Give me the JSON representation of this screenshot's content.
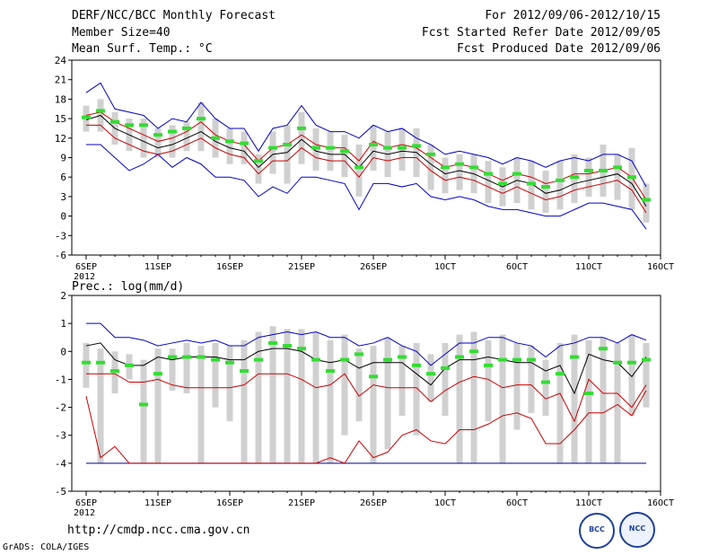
{
  "header": {
    "title": "DERF/NCC/BCC Monthly Forecast",
    "member_size": "Member Size=40",
    "variable": "Mean Surf. Temp.: °C",
    "period": "For 2012/09/06-2012/10/15",
    "started": "Fcst Started Refer Date 2012/09/05",
    "produced": "Fcst Produced Date 2012/09/06"
  },
  "footer": {
    "url": "http://cmdp.ncc.cma.gov.cn",
    "credit": "GrADS: COLA/IGES",
    "logo_bcc": "BCC",
    "logo_ncc": "NCC"
  },
  "chart_data": [
    {
      "type": "line",
      "title": "Mean Surf. Temp.: °C",
      "ylim": [
        -6,
        24
      ],
      "yticks": [
        "24",
        "21",
        "18",
        "15",
        "12",
        "9",
        "6",
        "3",
        "0",
        "-3",
        "-6"
      ],
      "xticks": [
        "6SEP",
        "11SEP",
        "16SEP",
        "21SEP",
        "26SEP",
        "1OCT",
        "6OCT",
        "11OCT",
        "16OCT"
      ],
      "xyear": "2012",
      "days": 40,
      "series": [
        {
          "name": "upper",
          "color": "#0000cc",
          "values": [
            19,
            20.5,
            16.5,
            16,
            15.5,
            13.5,
            15,
            14.5,
            17.5,
            15,
            13.5,
            13.5,
            10,
            13.5,
            14,
            17,
            14,
            13,
            13,
            12,
            14,
            13,
            13.5,
            12,
            11,
            9.5,
            10,
            9.5,
            9,
            8,
            9,
            8.5,
            7.5,
            8.5,
            9,
            8.5,
            9.5,
            9.5,
            8.5,
            4.5
          ]
        },
        {
          "name": "red_upper",
          "color": "#cc0000",
          "values": [
            15.5,
            16,
            14.5,
            13.5,
            12.5,
            11.5,
            12,
            13,
            14.5,
            12.5,
            11.5,
            11,
            8.5,
            10.5,
            11,
            12.5,
            11,
            10.5,
            10.5,
            8.5,
            11.5,
            10.5,
            11,
            10.5,
            9,
            7.5,
            8,
            7.5,
            6.5,
            5.5,
            6.5,
            6,
            5,
            5.5,
            6.5,
            6.5,
            7,
            7.5,
            6,
            2.5
          ]
        },
        {
          "name": "mean",
          "color": "#000000",
          "values": [
            14.8,
            15.5,
            13.5,
            12.5,
            11.5,
            10.5,
            11,
            12,
            13,
            11.5,
            10.5,
            10,
            7.5,
            9.5,
            9.8,
            11.8,
            10,
            9.5,
            9.5,
            7.5,
            10,
            9.5,
            10,
            9.8,
            8,
            6.5,
            7,
            6.5,
            5.5,
            4.5,
            5.5,
            5,
            3.5,
            4,
            5,
            5.5,
            6,
            6.5,
            5,
            1.5
          ]
        },
        {
          "name": "red_lower",
          "color": "#cc0000",
          "values": [
            14,
            14,
            12,
            11,
            10,
            9.5,
            10,
            11,
            12,
            10.5,
            9.5,
            9,
            6.5,
            8.5,
            8.5,
            10.5,
            9,
            8.5,
            8.5,
            6,
            9,
            8.5,
            9,
            9,
            7,
            5.5,
            6,
            5.5,
            4.5,
            3.5,
            4.5,
            3.5,
            2.5,
            3,
            4,
            4.5,
            5,
            5.5,
            4,
            0.5
          ]
        },
        {
          "name": "lower",
          "color": "#0000cc",
          "values": [
            11,
            11,
            9,
            7,
            8,
            9.5,
            7.5,
            9,
            8,
            6,
            6,
            5.5,
            3,
            4.5,
            3.5,
            6,
            6,
            5.5,
            5,
            1,
            5,
            5,
            4.5,
            5,
            3,
            2.5,
            3,
            2.5,
            1.5,
            1,
            1,
            0.5,
            0,
            0,
            1,
            2,
            2,
            1.5,
            1,
            -2
          ]
        },
        {
          "name": "observed",
          "color": "#33dd33",
          "values": [
            15.2,
            16.2,
            14.5,
            14,
            14,
            12.5,
            13,
            13.5,
            15,
            12,
            11.5,
            11.2,
            8.5,
            10.5,
            11,
            13.5,
            10.5,
            10.5,
            10,
            7.5,
            11,
            10.5,
            10.5,
            10.8,
            9.5,
            7.5,
            8,
            7.5,
            6.5,
            5,
            6.5,
            5,
            4.5,
            5.5,
            6,
            7,
            7,
            7.5,
            6,
            2.5
          ]
        },
        {
          "name": "spread_max",
          "color": "#cccccc",
          "values": [
            17,
            18,
            16,
            15,
            15,
            13.5,
            14,
            14.5,
            17.5,
            15,
            13.5,
            13,
            9.5,
            13,
            14,
            16,
            13.5,
            13,
            12.5,
            11,
            14,
            13,
            13.5,
            13.5,
            11,
            9,
            9.5,
            9.5,
            8.5,
            7.5,
            9,
            8.5,
            7,
            8.5,
            9.5,
            9,
            11,
            9.5,
            10.5,
            5
          ]
        },
        {
          "name": "spread_min",
          "color": "#cccccc",
          "values": [
            13,
            13,
            11,
            10,
            9,
            9,
            9,
            10,
            10,
            9,
            8,
            8,
            5,
            6.5,
            5,
            8,
            7,
            7,
            6,
            3,
            7,
            6,
            7,
            6,
            4,
            3.5,
            4,
            3.5,
            2,
            1.5,
            2,
            1,
            0.5,
            1,
            2,
            3,
            3,
            2.5,
            1,
            -1
          ]
        }
      ]
    },
    {
      "type": "line",
      "title": "Prec.: log(mm/d)",
      "ylim": [
        -5,
        2
      ],
      "yticks": [
        "2",
        "1",
        "0",
        "-1",
        "-2",
        "-3",
        "-4",
        "-5"
      ],
      "xticks": [
        "6SEP",
        "11SEP",
        "16SEP",
        "21SEP",
        "26SEP",
        "1OCT",
        "6OCT",
        "11OCT",
        "16OCT"
      ],
      "xyear": "2012",
      "days": 40,
      "series": [
        {
          "name": "upper",
          "color": "#0000cc",
          "values": [
            1,
            1,
            0.5,
            0.5,
            0.4,
            0.2,
            0.3,
            0.4,
            0.3,
            0.4,
            0.2,
            0.2,
            0.5,
            0.6,
            0.7,
            0.6,
            0.7,
            0.5,
            0.5,
            0.2,
            0.3,
            0.5,
            0.2,
            0,
            -0.5,
            -0.1,
            0.3,
            0.3,
            0.5,
            0.5,
            0.3,
            0.2,
            -0.2,
            0.2,
            0.3,
            0.5,
            0.5,
            0.3,
            0.6,
            0.4
          ]
        },
        {
          "name": "mean",
          "color": "#000000",
          "values": [
            0.2,
            0.3,
            -0.3,
            -0.5,
            -0.5,
            -0.2,
            -0.3,
            -0.2,
            -0.2,
            -0.2,
            -0.3,
            -0.3,
            0,
            0.1,
            0.1,
            0,
            -0.3,
            -0.4,
            -0.3,
            -0.6,
            -0.4,
            -0.4,
            -0.4,
            -0.8,
            -1.2,
            -0.6,
            -0.3,
            -0.3,
            -0.2,
            -0.3,
            -0.4,
            -0.4,
            -0.7,
            -0.5,
            -1.5,
            -0.1,
            -0.3,
            -0.4,
            -0.9,
            -0.2
          ]
        },
        {
          "name": "red_upper",
          "color": "#cc0000",
          "values": [
            -0.8,
            -0.8,
            -0.8,
            -1.1,
            -1.1,
            -1,
            -1.2,
            -1.3,
            -1.3,
            -1.3,
            -1.3,
            -1.2,
            -0.8,
            -0.8,
            -0.8,
            -1,
            -1.3,
            -1.2,
            -0.8,
            -1.6,
            -1.2,
            -1.3,
            -1.3,
            -1.3,
            -1.8,
            -1.4,
            -1.1,
            -0.9,
            -1,
            -1.3,
            -1.2,
            -1.2,
            -1.7,
            -1.5,
            -2.5,
            -1,
            -1.5,
            -1.5,
            -2,
            -1.2
          ]
        },
        {
          "name": "red_lower",
          "color": "#cc0000",
          "values": [
            -1.6,
            -3.8,
            -3.4,
            -4,
            -4,
            -4,
            -4,
            -4,
            -4,
            -4,
            -4,
            -4,
            -4,
            -4,
            -4,
            -4,
            -4,
            -3.8,
            -4,
            -3.2,
            -3.8,
            -3.6,
            -3,
            -2.8,
            -3.2,
            -3.3,
            -2.8,
            -2.8,
            -2.6,
            -2.3,
            -2.2,
            -2.4,
            -3.3,
            -3.3,
            -2.8,
            -2.2,
            -2.2,
            -1.9,
            -2.3,
            -1.4
          ]
        },
        {
          "name": "observed",
          "color": "#33dd33",
          "values": [
            -0.4,
            -0.4,
            -0.7,
            -0.5,
            -1.9,
            -0.8,
            -0.2,
            -0.2,
            -0.2,
            -0.3,
            -0.4,
            -0.7,
            -0.3,
            0.3,
            0.2,
            0.1,
            -0.3,
            -0.7,
            -0.3,
            -0.1,
            -0.9,
            -0.3,
            -0.2,
            -0.5,
            -0.8,
            -0.6,
            -0.2,
            0,
            -0.5,
            -0.3,
            -0.3,
            -0.3,
            -1.1,
            -0.8,
            -0.2,
            -1.5,
            0.1,
            -0.4,
            -0.4,
            -0.3
          ]
        },
        {
          "name": "spread_max",
          "color": "#cccccc",
          "values": [
            0.3,
            0.1,
            0,
            -0.1,
            -0.3,
            0.1,
            0.1,
            0.3,
            0.2,
            0.3,
            0.2,
            0.4,
            0.7,
            0.9,
            0.8,
            0.8,
            0.7,
            0.4,
            0.6,
            0.1,
            0.2,
            0.5,
            0.2,
            0.3,
            -0.1,
            0.3,
            0.6,
            0.7,
            0.4,
            0.6,
            0.3,
            0.2,
            -0.3,
            0.3,
            0.6,
            0.4,
            0.5,
            0.3,
            0.6,
            0.3
          ]
        },
        {
          "name": "spread_min",
          "color": "#cccccc",
          "values": [
            -1.3,
            -4,
            -1.5,
            -1,
            -4,
            -4,
            -1.4,
            -1.5,
            -4,
            -2,
            -2.5,
            -4,
            -4,
            -4,
            -4,
            -4,
            -4,
            -4,
            -3,
            -2.5,
            -4,
            -3.5,
            -2.3,
            -3,
            -1.8,
            -2.3,
            -4,
            -4,
            -2.5,
            -4,
            -2.8,
            -2.2,
            -2.3,
            -4,
            -4,
            -4,
            -4,
            -4,
            -2.3,
            -2
          ]
        },
        {
          "name": "floor",
          "color": "#00008b",
          "values": [
            -4,
            -4,
            -4,
            -4,
            -4,
            -4,
            -4,
            -4,
            -4,
            -4,
            -4,
            -4,
            -4,
            -4,
            -4,
            -4,
            -4,
            -4,
            -4,
            -4,
            -4,
            -4,
            -4,
            -4,
            -4,
            -4,
            -4,
            -4,
            -4,
            -4,
            -4,
            -4,
            -4,
            -4,
            -4,
            -4,
            -4,
            -4,
            -4,
            -4
          ]
        }
      ]
    }
  ]
}
